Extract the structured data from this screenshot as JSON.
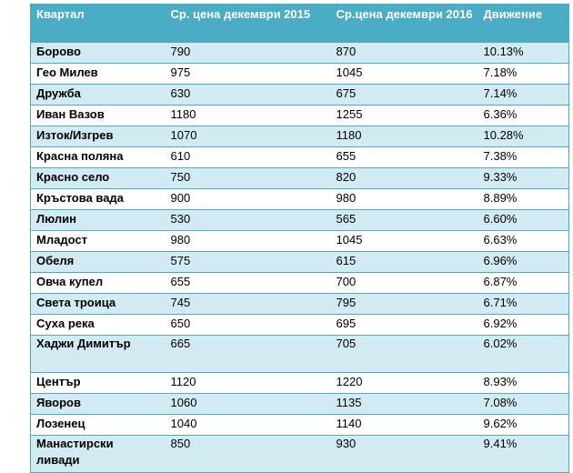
{
  "table": {
    "headers": [
      "Квартал",
      "Ср. цена декември 2015",
      "Ср.цена декември 2016",
      "Движение"
    ],
    "rows": [
      [
        "Борово",
        "790",
        "870",
        "10.13%"
      ],
      [
        "Гео Милев",
        "975",
        "1045",
        "7.18%"
      ],
      [
        "Дружба",
        "630",
        "675",
        "7.14%"
      ],
      [
        "Иван Вазов",
        "1180",
        "1255",
        "6.36%"
      ],
      [
        "Изток/Изгрев",
        "1070",
        "1180",
        "10.28%"
      ],
      [
        "Красна поляна",
        "610",
        "655",
        "7.38%"
      ],
      [
        "Красно село",
        "750",
        "820",
        "9.33%"
      ],
      [
        "Кръстова вада",
        "900",
        "980",
        "8.89%"
      ],
      [
        "Люлин",
        "530",
        "565",
        "6.60%"
      ],
      [
        "Младост",
        "980",
        "1045",
        "6.63%"
      ],
      [
        "Обеля",
        "575",
        "615",
        "6.96%"
      ],
      [
        "Овча купел",
        "655",
        "700",
        "6.87%"
      ],
      [
        "Света троица",
        "745",
        "795",
        "6.71%"
      ],
      [
        "Суха река",
        "650",
        "695",
        "6.92%"
      ],
      [
        "Хаджи Димитър",
        "665",
        "705",
        "6.02%"
      ],
      [
        "Център",
        "1120",
        "1220",
        "8.93%"
      ],
      [
        "Яворов",
        "1060",
        "1135",
        "7.08%"
      ],
      [
        "Лозенец",
        "1040",
        "1140",
        "9.62%"
      ],
      [
        "Манастирски ливади",
        "850",
        "930",
        "9.41%"
      ]
    ]
  }
}
